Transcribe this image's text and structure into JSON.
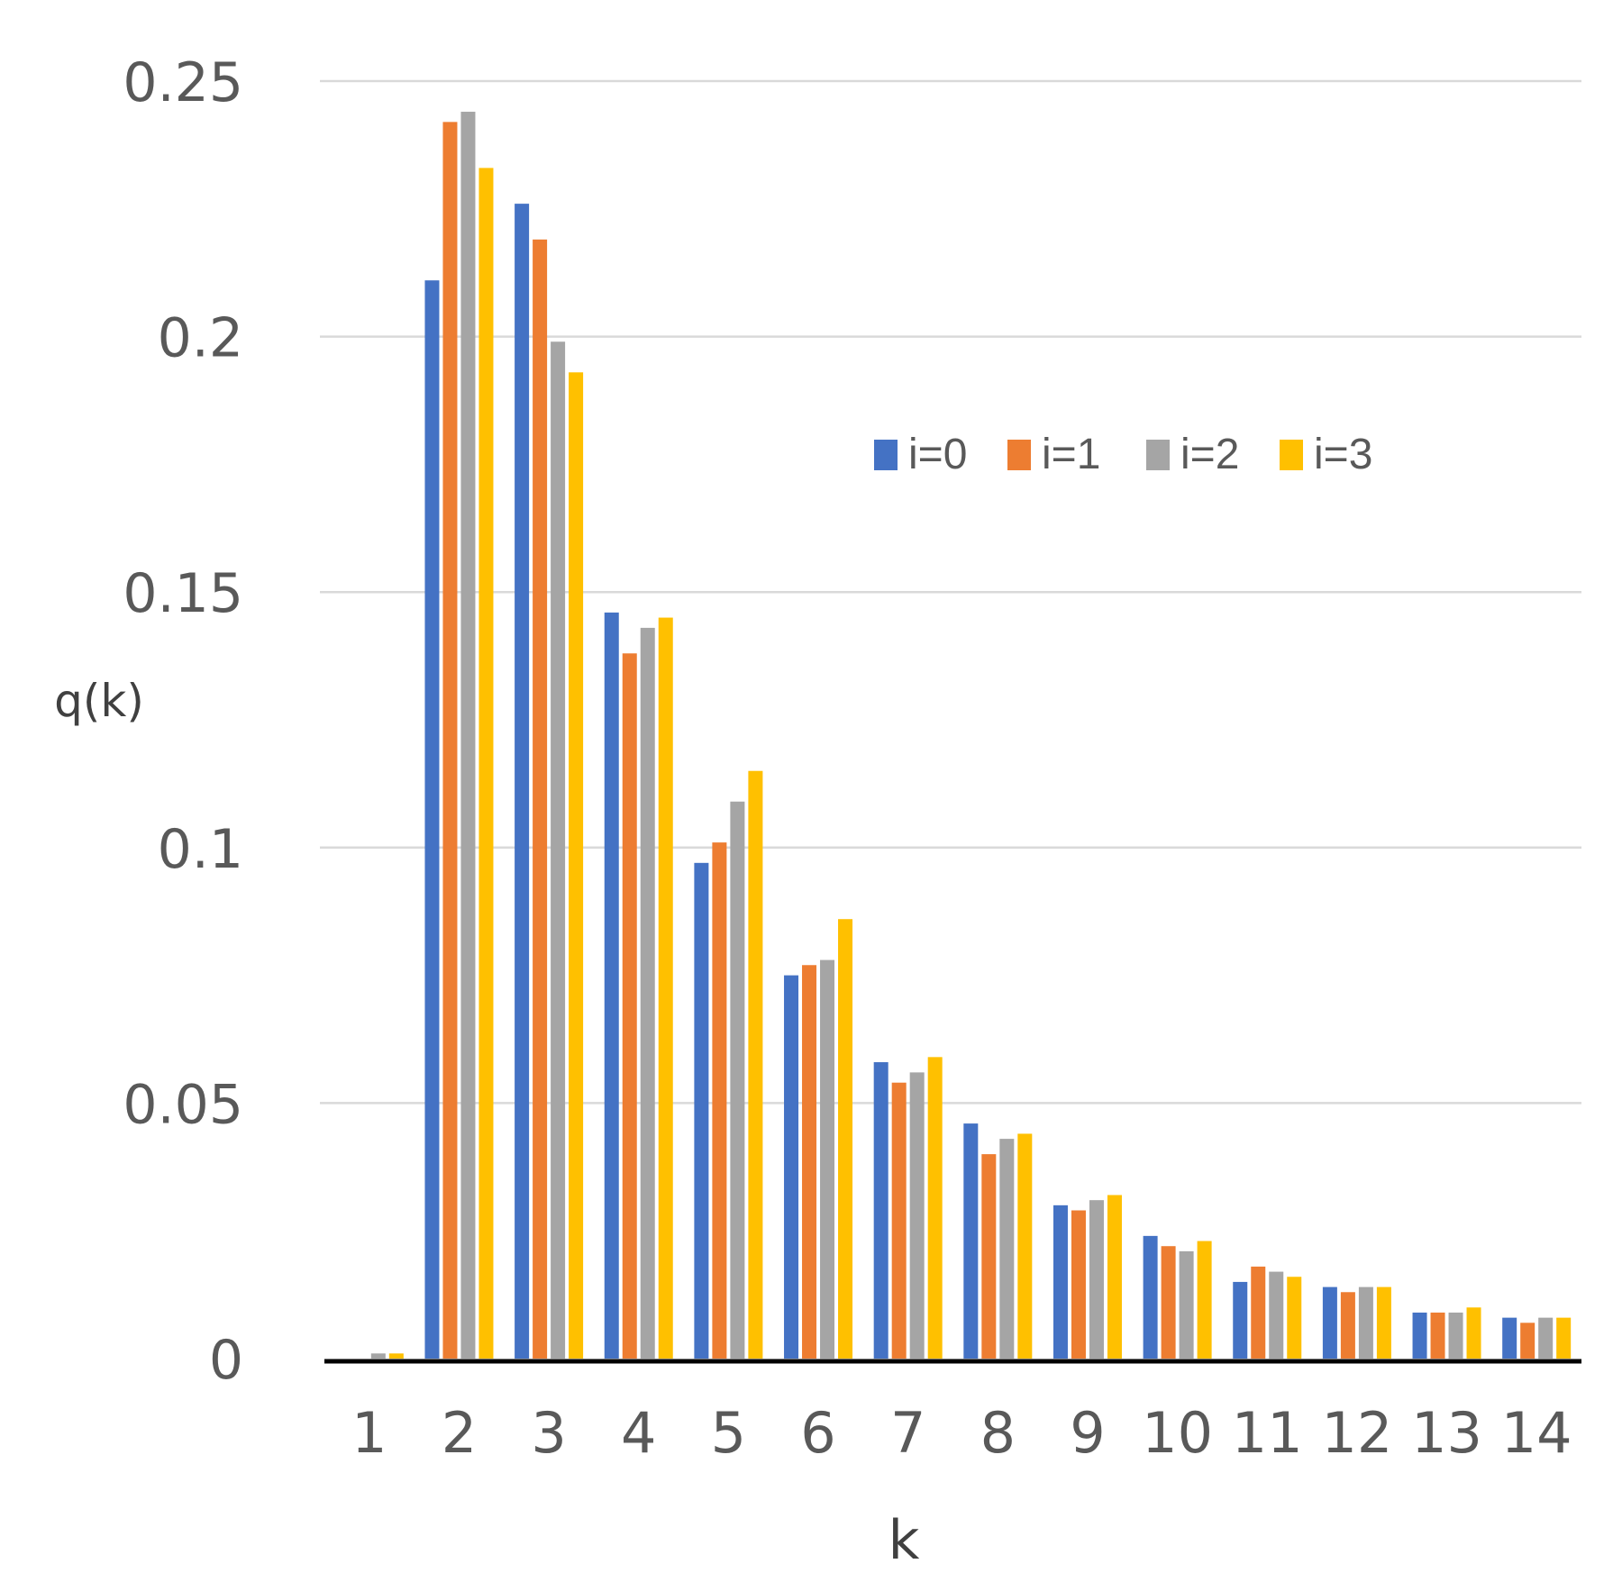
{
  "chart_data": {
    "type": "bar",
    "title": "",
    "xlabel": "k",
    "ylabel": "q(k)",
    "ylim": [
      0,
      0.25
    ],
    "y_ticks": [
      "0",
      "0.05",
      "0.1",
      "0.15",
      "0.2",
      "0.25"
    ],
    "y_tick_values": [
      0,
      0.05,
      0.1,
      0.15,
      0.2,
      0.25
    ],
    "categories": [
      "1",
      "2",
      "3",
      "4",
      "5",
      "6",
      "7",
      "8",
      "9",
      "10",
      "11",
      "12",
      "13",
      "14"
    ],
    "grid": true,
    "legend_position": "top-right",
    "series": [
      {
        "name": "i=0",
        "color": "#4472c4",
        "values": [
          0.0,
          0.211,
          0.226,
          0.146,
          0.097,
          0.075,
          0.058,
          0.046,
          0.03,
          0.024,
          0.015,
          0.014,
          0.009,
          0.008
        ]
      },
      {
        "name": "i=1",
        "color": "#ed7d31",
        "values": [
          0.0,
          0.242,
          0.219,
          0.138,
          0.101,
          0.077,
          0.054,
          0.04,
          0.029,
          0.022,
          0.018,
          0.013,
          0.009,
          0.007
        ]
      },
      {
        "name": "i=2",
        "color": "#a5a5a5",
        "values": [
          0.001,
          0.244,
          0.199,
          0.143,
          0.109,
          0.078,
          0.056,
          0.043,
          0.031,
          0.021,
          0.017,
          0.014,
          0.009,
          0.008
        ]
      },
      {
        "name": "i=3",
        "color": "#ffc000",
        "values": [
          0.001,
          0.233,
          0.193,
          0.145,
          0.115,
          0.086,
          0.059,
          0.044,
          0.032,
          0.023,
          0.016,
          0.014,
          0.01,
          0.008
        ]
      }
    ]
  }
}
